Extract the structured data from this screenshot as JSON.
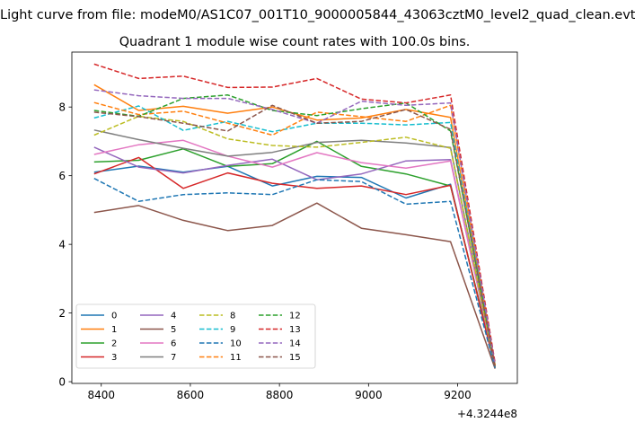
{
  "suptitle": "Light curve from file: modeM0/AS1C07_001T10_9000005844_43063cztM0_level2_quad_clean.evt",
  "chart_data": {
    "type": "line",
    "title": "Quadrant 1 module wise count rates with 100.0s bins.",
    "xlabel": "",
    "ylabel": "",
    "x_offset_label": "+4.3244e8",
    "x": [
      8384,
      8484,
      8584,
      8684,
      8784,
      8884,
      8984,
      9084,
      9184,
      9284
    ],
    "xlim": [
      8334,
      9334
    ],
    "ylim": [
      -0.05,
      9.6
    ],
    "xticks": [
      8400,
      8600,
      8800,
      9000,
      9200
    ],
    "yticks": [
      0,
      2,
      4,
      6,
      8
    ],
    "legend_location": "lower-left",
    "legend_columns": 4,
    "series": [
      {
        "name": "0",
        "color": "#1f77b4",
        "dash": "solid",
        "values": [
          6.1,
          6.28,
          6.1,
          6.27,
          5.7,
          5.98,
          5.95,
          5.35,
          5.75,
          0.4
        ]
      },
      {
        "name": "1",
        "color": "#ff7f0e",
        "dash": "solid",
        "values": [
          8.65,
          7.9,
          8.02,
          7.82,
          8.0,
          7.62,
          7.68,
          7.93,
          7.7,
          0.45
        ]
      },
      {
        "name": "2",
        "color": "#2ca02c",
        "dash": "solid",
        "values": [
          6.4,
          6.45,
          6.78,
          6.27,
          6.35,
          7.0,
          6.27,
          6.05,
          5.7,
          0.5
        ]
      },
      {
        "name": "3",
        "color": "#d62728",
        "dash": "solid",
        "values": [
          6.05,
          6.53,
          5.63,
          6.08,
          5.78,
          5.63,
          5.7,
          5.45,
          5.72,
          0.42
        ]
      },
      {
        "name": "4",
        "color": "#9467bd",
        "dash": "solid",
        "values": [
          6.83,
          6.25,
          6.08,
          6.3,
          6.48,
          5.88,
          6.05,
          6.43,
          6.47,
          0.45
        ]
      },
      {
        "name": "5",
        "color": "#8c564b",
        "dash": "solid",
        "values": [
          4.93,
          5.13,
          4.7,
          4.4,
          4.55,
          5.2,
          4.47,
          4.28,
          4.08,
          0.38
        ]
      },
      {
        "name": "6",
        "color": "#e377c2",
        "dash": "solid",
        "values": [
          6.62,
          6.9,
          7.03,
          6.57,
          6.25,
          6.67,
          6.38,
          6.22,
          6.43,
          0.45
        ]
      },
      {
        "name": "7",
        "color": "#7f7f7f",
        "dash": "solid",
        "values": [
          7.33,
          7.05,
          6.8,
          6.57,
          6.68,
          6.97,
          7.03,
          6.95,
          6.82,
          0.45
        ]
      },
      {
        "name": "8",
        "color": "#bcbd22",
        "dash": "dashed",
        "values": [
          7.18,
          7.73,
          7.58,
          7.07,
          6.88,
          6.83,
          6.97,
          7.12,
          6.8,
          0.42
        ]
      },
      {
        "name": "9",
        "color": "#17becf",
        "dash": "dashed",
        "values": [
          7.68,
          8.03,
          7.32,
          7.58,
          7.28,
          7.53,
          7.53,
          7.48,
          7.55,
          0.45
        ]
      },
      {
        "name": "10",
        "color": "#1f77b4",
        "dash": "dashed",
        "values": [
          5.92,
          5.25,
          5.45,
          5.5,
          5.45,
          5.88,
          5.83,
          5.17,
          5.25,
          0.4
        ]
      },
      {
        "name": "11",
        "color": "#ff7f0e",
        "dash": "dashed",
        "values": [
          8.13,
          7.78,
          7.88,
          7.53,
          7.18,
          7.85,
          7.72,
          7.58,
          8.05,
          0.48
        ]
      },
      {
        "name": "12",
        "color": "#2ca02c",
        "dash": "dashed",
        "values": [
          7.9,
          7.73,
          8.25,
          8.35,
          7.9,
          7.75,
          7.95,
          8.12,
          7.3,
          0.5
        ]
      },
      {
        "name": "13",
        "color": "#d62728",
        "dash": "dashed",
        "values": [
          9.25,
          8.83,
          8.9,
          8.57,
          8.58,
          8.83,
          8.23,
          8.12,
          8.35,
          0.55
        ]
      },
      {
        "name": "14",
        "color": "#9467bd",
        "dash": "dashed",
        "values": [
          8.5,
          8.33,
          8.25,
          8.25,
          7.93,
          7.53,
          8.17,
          8.05,
          8.12,
          0.48
        ]
      },
      {
        "name": "15",
        "color": "#8c564b",
        "dash": "dashed",
        "values": [
          7.85,
          7.72,
          7.53,
          7.3,
          8.05,
          7.53,
          7.58,
          7.93,
          7.35,
          0.42
        ]
      }
    ]
  }
}
